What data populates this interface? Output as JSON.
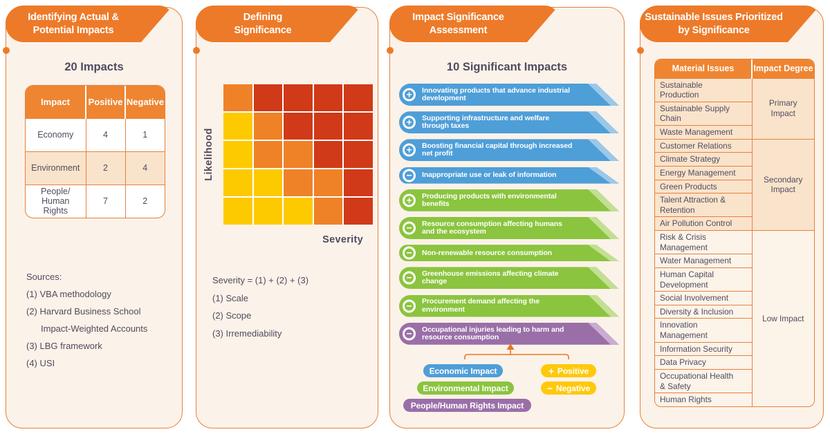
{
  "colors": {
    "brand_orange": "#ED7A29",
    "border_orange": "#E6813B",
    "table_header_orange": "#EF8531",
    "panel_cream": "#FBF2E9",
    "row_peach": "#FAE3CB",
    "text_dark": "#4F4C5F",
    "economic_blue": "#4E9ED8",
    "economic_blue_light": "#9CC8E8",
    "environmental_green": "#8BC43F",
    "environmental_green_light": "#C2DF94",
    "people_purple": "#9A6FA8",
    "people_purple_light": "#C9ACD2",
    "sign_yellow": "#FEC90B",
    "heat_yellow": "#FDCA00",
    "heat_orange": "#EF8227",
    "heat_red": "#D03A18"
  },
  "panel_identify": {
    "title": "Identifying Actual &\nPotential Impacts",
    "subtitle": "20 Impacts",
    "impact_table": {
      "headers": [
        "Impact",
        "Positive",
        "Negative"
      ],
      "rows": [
        {
          "impact": "Economy",
          "positive": "4",
          "negative": "1",
          "highlight": false
        },
        {
          "impact": "Environment",
          "positive": "2",
          "negative": "4",
          "highlight": true
        },
        {
          "impact": "People/\nHuman\nRights",
          "positive": "7",
          "negative": "2",
          "highlight": false
        }
      ]
    },
    "sources_label": "Sources:",
    "sources": [
      {
        "text": "(1) VBA methodology",
        "indent": false
      },
      {
        "text": "(2) Harvard Business School",
        "indent": false
      },
      {
        "text": "Impact-Weighted Accounts",
        "indent": true
      },
      {
        "text": "(3) LBG framework",
        "indent": false
      },
      {
        "text": "(4) USI",
        "indent": false
      }
    ]
  },
  "panel_defining": {
    "title": "Defining\nSignificance",
    "y_axis_label": "Likelihood",
    "x_axis_label": "Severity",
    "matrix_rows": [
      [
        "o",
        "r",
        "r",
        "r",
        "r"
      ],
      [
        "y",
        "o",
        "r",
        "r",
        "r"
      ],
      [
        "y",
        "o",
        "o",
        "r",
        "r"
      ],
      [
        "y",
        "y",
        "o",
        "o",
        "r"
      ],
      [
        "y",
        "y",
        "y",
        "o",
        "r"
      ]
    ],
    "formula_lines": [
      "Severity = (1) + (2) + (3)",
      "(1) Scale",
      "(2) Scope",
      "(3) Irremediability"
    ]
  },
  "panel_assessment": {
    "title": "Impact Significance\nAssessment",
    "subtitle": "10 Significant Impacts",
    "impacts": [
      {
        "sign": "+",
        "category": "economic",
        "text": "Innovating products that advance industrial\ndevelopment"
      },
      {
        "sign": "+",
        "category": "economic",
        "text": "Supporting infrastructure and welfare\nthrough taxes"
      },
      {
        "sign": "+",
        "category": "economic",
        "text": "Boosting financial capital through increased\nnet profit"
      },
      {
        "sign": "−",
        "category": "economic",
        "text": "Inappropriate use or leak of information"
      },
      {
        "sign": "+",
        "category": "environmental",
        "text": "Producing products with environmental\nbenefits"
      },
      {
        "sign": "−",
        "category": "environmental",
        "text": "Resource consumption affecting humans\nand the ecosystem"
      },
      {
        "sign": "−",
        "category": "environmental",
        "text": "Non-renewable resource consumption"
      },
      {
        "sign": "−",
        "category": "environmental",
        "text": "Greenhouse emissions affecting climate\nchange"
      },
      {
        "sign": "−",
        "category": "environmental",
        "text": "Procurement demand affecting the\nenvironment"
      },
      {
        "sign": "−",
        "category": "people",
        "text": "Occupational injuries leading to harm and\nresource consumption"
      }
    ],
    "legend_categories": [
      {
        "id": "economic",
        "label": "Economic Impact"
      },
      {
        "id": "environmental",
        "label": "Environmental Impact"
      },
      {
        "id": "people",
        "label": "People/Human Rights Impact"
      }
    ],
    "legend_signs": [
      {
        "symbol": "+",
        "label": "Positive"
      },
      {
        "symbol": "−",
        "label": "Negative"
      }
    ]
  },
  "panel_prioritized": {
    "title": "Sustainable Issues Prioritized\nby Significance",
    "table_headers": [
      "Material Issues",
      "Impact Degree"
    ],
    "groups": [
      {
        "degree": "Primary\nImpact",
        "tone": "peach",
        "issues": [
          "Sustainable\nProduction",
          "Sustainable Supply\nChain",
          "Waste Management"
        ]
      },
      {
        "degree": "Secondary\nImpact",
        "tone": "peach",
        "issues": [
          "Customer Relations",
          "Climate Strategy",
          "Energy Management",
          "Green Products",
          "Talent Attraction &\nRetention",
          "Air Pollution Control"
        ]
      },
      {
        "degree": "Low Impact",
        "tone": "cream",
        "issues": [
          "Risk & Crisis\nManagement",
          "Water Management",
          "Human Capital\nDevelopment",
          "Social Involvement",
          "Diversity & Inclusion",
          "Innovation\nManagement",
          "Information Security",
          "Data Privacy",
          "Occupational Health\n& Safety",
          "Human Rights"
        ]
      }
    ]
  }
}
